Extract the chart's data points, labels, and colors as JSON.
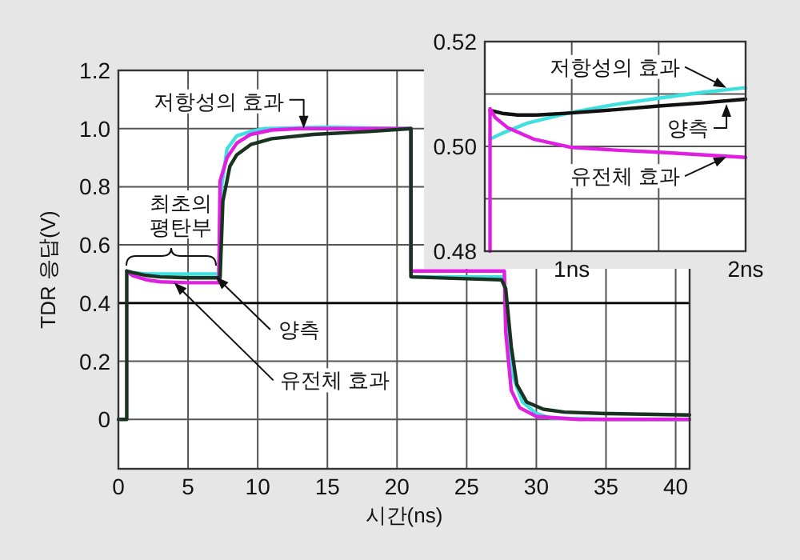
{
  "chart_data": [
    {
      "type": "line",
      "xlabel": "시간(ns)",
      "ylabel": "TDR 응답(V)",
      "xlim": [
        0,
        41
      ],
      "ylim": [
        -0.17,
        1.2
      ],
      "xticks": [
        0,
        5,
        10,
        15,
        20,
        25,
        30,
        35,
        40
      ],
      "yticks": [
        0,
        0.2,
        0.4,
        0.6,
        0.8,
        {
          "value": 1,
          "label": "1.0"
        },
        1.2
      ],
      "grid": true,
      "line_style": "solid",
      "ref_lines": [
        {
          "axis": "y",
          "value": 0.4,
          "color": "#000000"
        }
      ],
      "series": [
        {
          "color": "#40e0e0",
          "x": [
            0.6,
            1,
            2,
            4,
            7,
            7.2,
            7.4,
            7.8,
            8.5,
            9.5,
            10.5,
            15,
            20,
            21,
            21,
            23,
            27.7,
            27.8,
            28.3,
            29,
            30,
            31,
            35,
            41
          ],
          "values": [
            0.51,
            0.505,
            0.5,
            0.5,
            0.5,
            0.5,
            0.8,
            0.93,
            0.975,
            0.99,
            1.0,
            1.005,
            1.0,
            1.0,
            0.49,
            0.49,
            0.49,
            0.4,
            0.15,
            0.06,
            0.02,
            0.005,
            0,
            0
          ]
        },
        {
          "color": "#e020e0",
          "x": [
            0.6,
            1,
            2,
            3,
            5,
            7,
            7.2,
            7.3,
            7.8,
            8.5,
            9.5,
            11,
            13,
            20,
            21,
            21,
            22,
            27.7,
            27.8,
            28.2,
            28.8,
            30,
            33,
            41
          ],
          "values": [
            0.51,
            0.495,
            0.48,
            0.473,
            0.47,
            0.47,
            0.47,
            0.82,
            0.9,
            0.95,
            0.98,
            0.995,
            1.0,
            1.0,
            1.0,
            0.51,
            0.51,
            0.51,
            0.3,
            0.1,
            0.04,
            0.01,
            0,
            0
          ]
        },
        {
          "color": "#1a3320",
          "x": [
            0,
            0.6,
            0.6,
            1,
            2,
            3,
            5,
            7,
            7.3,
            7.5,
            8,
            8.5,
            9.5,
            11,
            14,
            18,
            21,
            21,
            24,
            27.5,
            27.8,
            28.2,
            28.6,
            29.3,
            30.5,
            32,
            35,
            41
          ],
          "values": [
            0,
            0,
            0.51,
            0.505,
            0.495,
            0.49,
            0.487,
            0.487,
            0.487,
            0.75,
            0.87,
            0.91,
            0.945,
            0.965,
            0.98,
            0.99,
            1.0,
            0.49,
            0.485,
            0.48,
            0.45,
            0.25,
            0.12,
            0.06,
            0.035,
            0.025,
            0.02,
            0.015
          ]
        }
      ],
      "annotations": [
        {
          "text": "저항성의 효과",
          "x": 13.3,
          "y": 1.0
        },
        "최초의 평탄부",
        {
          "text": "양측",
          "x": 7.0,
          "y": 0.49
        },
        {
          "text": "유전체 효과",
          "x": 4.0,
          "y": 0.47
        }
      ]
    },
    {
      "type": "line",
      "xlim": [
        0.5,
        2
      ],
      "ylim": [
        0.48,
        0.52
      ],
      "xticks": [
        {
          "value": 1,
          "label": "1ns"
        },
        {
          "value": 1.5,
          "label": null
        },
        {
          "value": 2,
          "label": "2ns"
        }
      ],
      "yticks": [
        {
          "value": 0.48,
          "label": "0.48"
        },
        {
          "value": 0.49,
          "label": null
        },
        {
          "value": 0.5,
          "label": "0.50"
        },
        {
          "value": 0.51,
          "label": null
        },
        {
          "value": 0.52,
          "label": "0.52"
        }
      ],
      "grid": true,
      "line_style": "solid",
      "series": [
        {
          "color": "#40e0e0",
          "x": [
            0.53,
            0.6,
            0.75,
            1.0,
            1.25,
            1.5,
            1.75,
            2.0
          ],
          "values": [
            0.5014,
            0.5025,
            0.5045,
            0.5065,
            0.508,
            0.5092,
            0.5103,
            0.5112
          ]
        },
        {
          "color": "#111111",
          "x": [
            0.53,
            0.6,
            0.69,
            0.8,
            1.0,
            1.25,
            1.5,
            1.75,
            2.0
          ],
          "values": [
            0.5069,
            0.5063,
            0.506,
            0.506,
            0.5064,
            0.507,
            0.5077,
            0.5083,
            0.509
          ]
        },
        {
          "color": "#e020e0",
          "x": [
            0.53,
            0.53,
            0.56,
            0.63,
            0.78,
            1.0,
            1.25,
            1.5,
            1.75,
            2.0
          ],
          "values": [
            0.48,
            0.5072,
            0.5055,
            0.5036,
            0.5014,
            0.4998,
            0.4993,
            0.4989,
            0.4984,
            0.4979
          ]
        }
      ],
      "annotations": [
        {
          "text": "저항성의 효과",
          "x": 1.89,
          "y": 0.5112
        },
        {
          "text": "양측",
          "x": 1.89,
          "y": 0.5081
        },
        {
          "text": "유전체 효과",
          "x": 1.89,
          "y": 0.498
        }
      ]
    }
  ]
}
